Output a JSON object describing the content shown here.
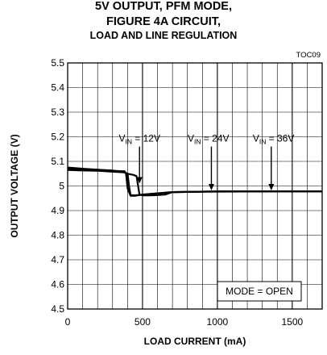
{
  "title_lines": [
    "5V OUTPUT, PFM MODE,",
    "FIGURE 4A CIRCUIT,",
    "LOAD AND LINE REGULATION"
  ],
  "toc_id": "TOC09",
  "colors": {
    "line": "#000000",
    "grid": "#000000",
    "background": "#ffffff"
  },
  "chart_data": {
    "type": "line",
    "title": "5V OUTPUT, PFM MODE, FIGURE 4A CIRCUIT, LOAD AND LINE REGULATION",
    "xlabel": "LOAD CURRENT (mA)",
    "ylabel": "OUTPUT  VOLTAGE  (V)",
    "xlim": [
      0,
      1700
    ],
    "ylim": [
      4.5,
      5.5
    ],
    "x_ticks": [
      0,
      500,
      1000,
      1500
    ],
    "x_tick_labels": [
      "0",
      "500",
      "1000",
      "1500"
    ],
    "y_ticks": [
      4.5,
      4.6,
      4.7,
      4.8,
      4.9,
      5.0,
      5.1,
      5.2,
      5.3,
      5.4,
      5.5
    ],
    "y_tick_labels": [
      "4.5",
      "4.6",
      "4.7",
      "4.8",
      "4.9",
      "5",
      "5.1",
      "5.2",
      "5.3",
      "5.4",
      "5.5"
    ],
    "x_minor_step": 100,
    "grid": true,
    "series": [
      {
        "name": "VIN = 12V",
        "x": [
          0,
          100,
          200,
          300,
          380,
          400,
          440,
          460,
          480,
          500,
          520,
          550,
          600,
          650,
          700,
          1000,
          1500,
          1700
        ],
        "y": [
          5.065,
          5.063,
          5.062,
          5.058,
          5.055,
          5.05,
          5.045,
          5.04,
          4.965,
          4.962,
          4.962,
          4.962,
          4.963,
          4.965,
          4.975,
          4.977,
          4.978,
          4.978
        ]
      },
      {
        "name": "VIN = 24V",
        "x": [
          0,
          100,
          200,
          300,
          350,
          380,
          400,
          410,
          420,
          450,
          500,
          700,
          1000,
          1500,
          1700
        ],
        "y": [
          5.07,
          5.068,
          5.066,
          5.063,
          5.058,
          5.055,
          5.05,
          5.0,
          4.963,
          4.962,
          4.965,
          4.975,
          4.978,
          4.978,
          4.978
        ]
      },
      {
        "name": "VIN = 36V",
        "x": [
          0,
          100,
          200,
          300,
          360,
          380,
          390,
          400,
          420,
          450,
          500,
          700,
          1000,
          1500,
          1700
        ],
        "y": [
          5.075,
          5.07,
          5.066,
          5.062,
          5.06,
          5.06,
          5.05,
          4.99,
          4.96,
          4.96,
          4.965,
          4.975,
          4.978,
          4.978,
          4.978
        ]
      }
    ],
    "annotations": [
      {
        "text_main": "V",
        "text_sub": "IN",
        "text_rest": " = 12V",
        "label_x": 480,
        "label_y": 5.18,
        "arrow_to_x": 480,
        "arrow_to_y": 5.01
      },
      {
        "text_main": "V",
        "text_sub": "IN",
        "text_rest": " = 24V",
        "label_x": 940,
        "label_y": 5.18,
        "arrow_to_x": 960,
        "arrow_to_y": 4.982
      },
      {
        "text_main": "V",
        "text_sub": "IN",
        "text_rest": " = 36V",
        "label_x": 1375,
        "label_y": 5.18,
        "arrow_to_x": 1360,
        "arrow_to_y": 4.982
      }
    ],
    "note_box": "MODE = OPEN"
  }
}
